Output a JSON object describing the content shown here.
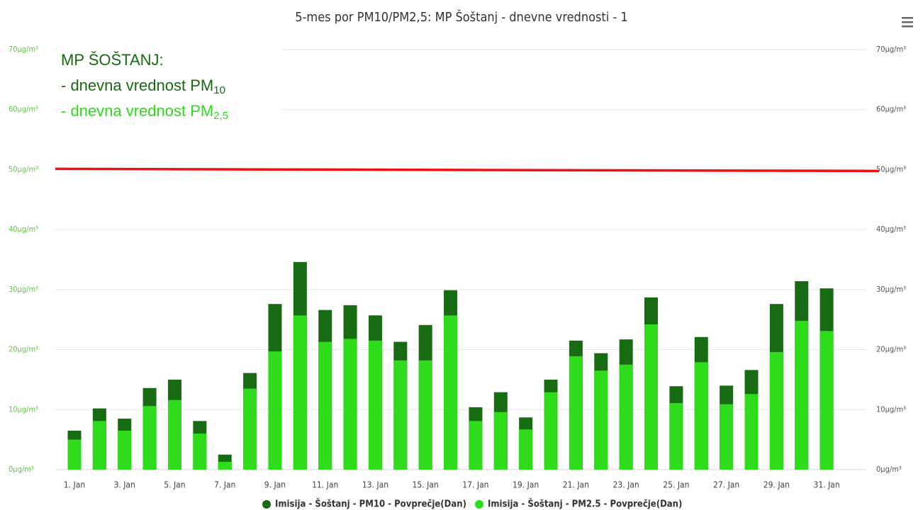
{
  "chart_data": {
    "type": "bar",
    "title": "5-mes por PM10/PM2,5: MP Šoštanj - dnevne vrednosti - 1",
    "categories": [
      "1. Jan",
      null,
      "3. Jan",
      null,
      "5. Jan",
      null,
      "7. Jan",
      null,
      "9. Jan",
      null,
      "11. Jan",
      null,
      "13. Jan",
      null,
      "15. Jan",
      null,
      "17. Jan",
      null,
      "19. Jan",
      null,
      "21. Jan",
      null,
      "23. Jan",
      null,
      "25. Jan",
      null,
      "27. Jan",
      null,
      "29. Jan",
      null,
      "31. Jan"
    ],
    "series": [
      {
        "name": "Imisija - Šoštanj - PM10 - Povprečje(Dan)",
        "color": "#176b12",
        "values": [
          6.5,
          10.2,
          8.5,
          13.6,
          15.0,
          8.1,
          2.5,
          16.1,
          27.6,
          34.6,
          26.6,
          27.4,
          25.7,
          21.3,
          24.1,
          29.9,
          10.4,
          12.9,
          8.7,
          15.0,
          21.5,
          19.4,
          21.7,
          28.7,
          13.9,
          22.1,
          14.0,
          16.6,
          27.6,
          31.4,
          30.2
        ]
      },
      {
        "name": "Imisija - Šoštanj - PM2.5 - Povprečje(Dan)",
        "color": "#2edc1c",
        "values": [
          5.0,
          8.1,
          6.5,
          10.6,
          11.6,
          6.0,
          1.3,
          13.5,
          19.7,
          25.7,
          21.3,
          21.8,
          21.5,
          18.2,
          18.2,
          25.7,
          8.1,
          9.6,
          6.7,
          12.9,
          18.9,
          16.5,
          17.5,
          24.2,
          11.1,
          17.9,
          10.9,
          12.6,
          19.6,
          24.8,
          23.1
        ]
      }
    ],
    "ylim": [
      0,
      70
    ],
    "yticks": [
      {
        "value": 0,
        "label": "0µg/m³"
      },
      {
        "value": 10,
        "label": "10µg/m³"
      },
      {
        "value": 20,
        "label": "20µg/m³"
      },
      {
        "value": 30,
        "label": "30µg/m³"
      },
      {
        "value": 40,
        "label": "40µg/m³"
      },
      {
        "value": 50,
        "label": "50µg/m³"
      },
      {
        "value": 60,
        "label": "60µg/m³"
      },
      {
        "value": 70,
        "label": "70µg/m³"
      }
    ],
    "y2lim": [
      0,
      70
    ],
    "y2ticks": [
      {
        "value": 0,
        "label": "0µg/m³"
      },
      {
        "value": 10,
        "label": "10µg/m³"
      },
      {
        "value": 20,
        "label": "20µg/m³"
      },
      {
        "value": 30,
        "label": "30µg/m³"
      },
      {
        "value": 40,
        "label": "40µg/m³"
      },
      {
        "value": 50,
        "label": "50µg/m³"
      },
      {
        "value": 60,
        "label": "60µg/m³"
      },
      {
        "value": 70,
        "label": "70µg/m³"
      }
    ],
    "grid": true,
    "threshold": {
      "value": 50,
      "color": "#ee1111"
    },
    "annotations": [
      {
        "text": "MP ŠOŠTANJ:",
        "color": "#176b12"
      },
      {
        "text": "- dnevna vrednost PM",
        "sub": "10",
        "color": "#176b12"
      },
      {
        "text": "- dnevna vrednost PM",
        "sub": "2,5",
        "color": "#2edc1c"
      }
    ],
    "legend": "bottom"
  }
}
